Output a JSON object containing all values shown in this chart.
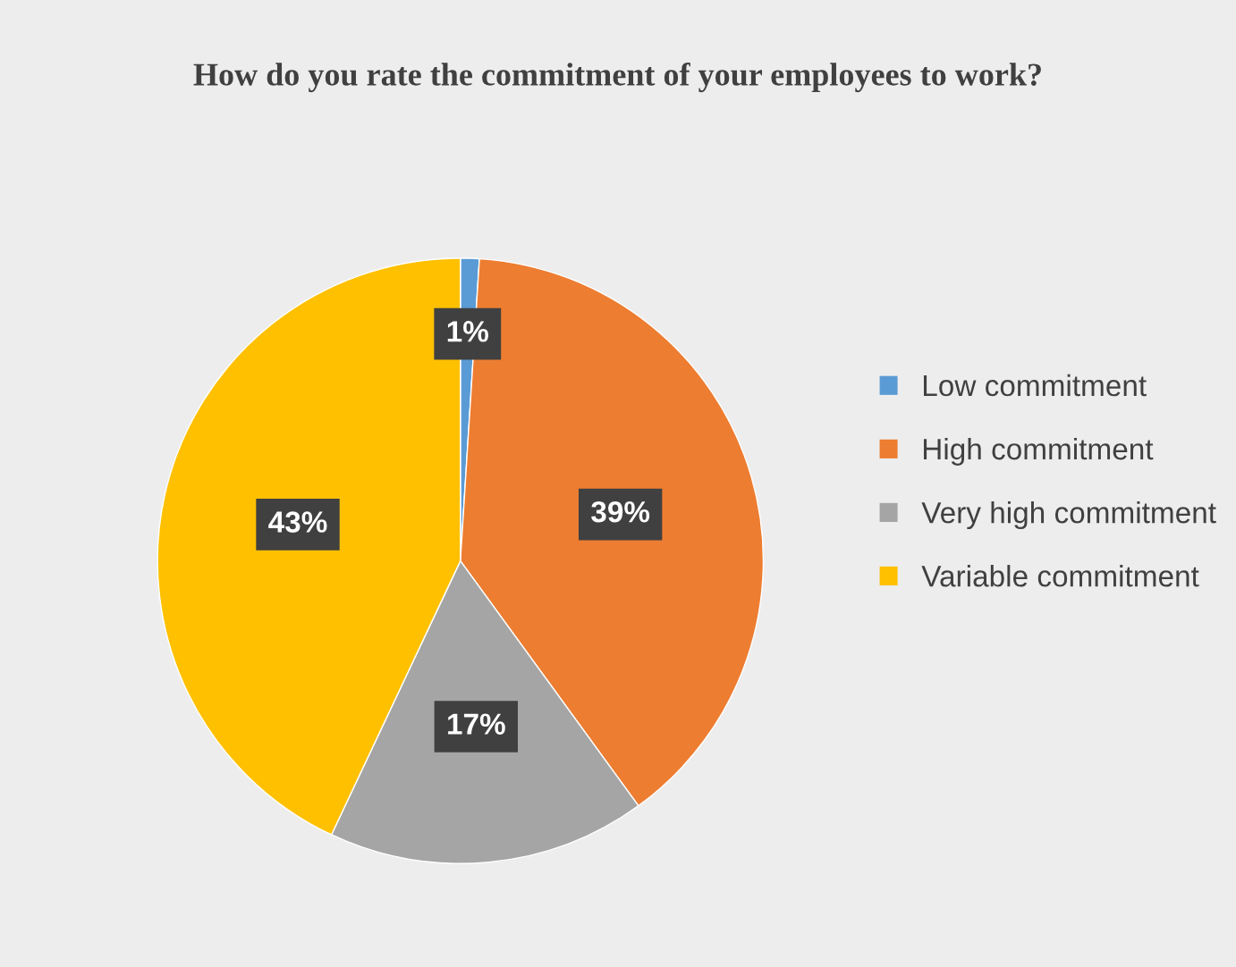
{
  "chart_data": {
    "type": "pie",
    "title": "How do you rate the commitment of your employees to work?",
    "categories": [
      "Low commitment",
      "High commitment",
      "Very high commitment",
      "Variable commitment"
    ],
    "values": [
      1,
      39,
      17,
      43
    ],
    "colors": [
      "#5b9bd5",
      "#ed7d31",
      "#a5a5a5",
      "#ffc000"
    ],
    "value_labels": [
      "1%",
      "39%",
      "17%",
      "43%"
    ],
    "legend": "right"
  }
}
